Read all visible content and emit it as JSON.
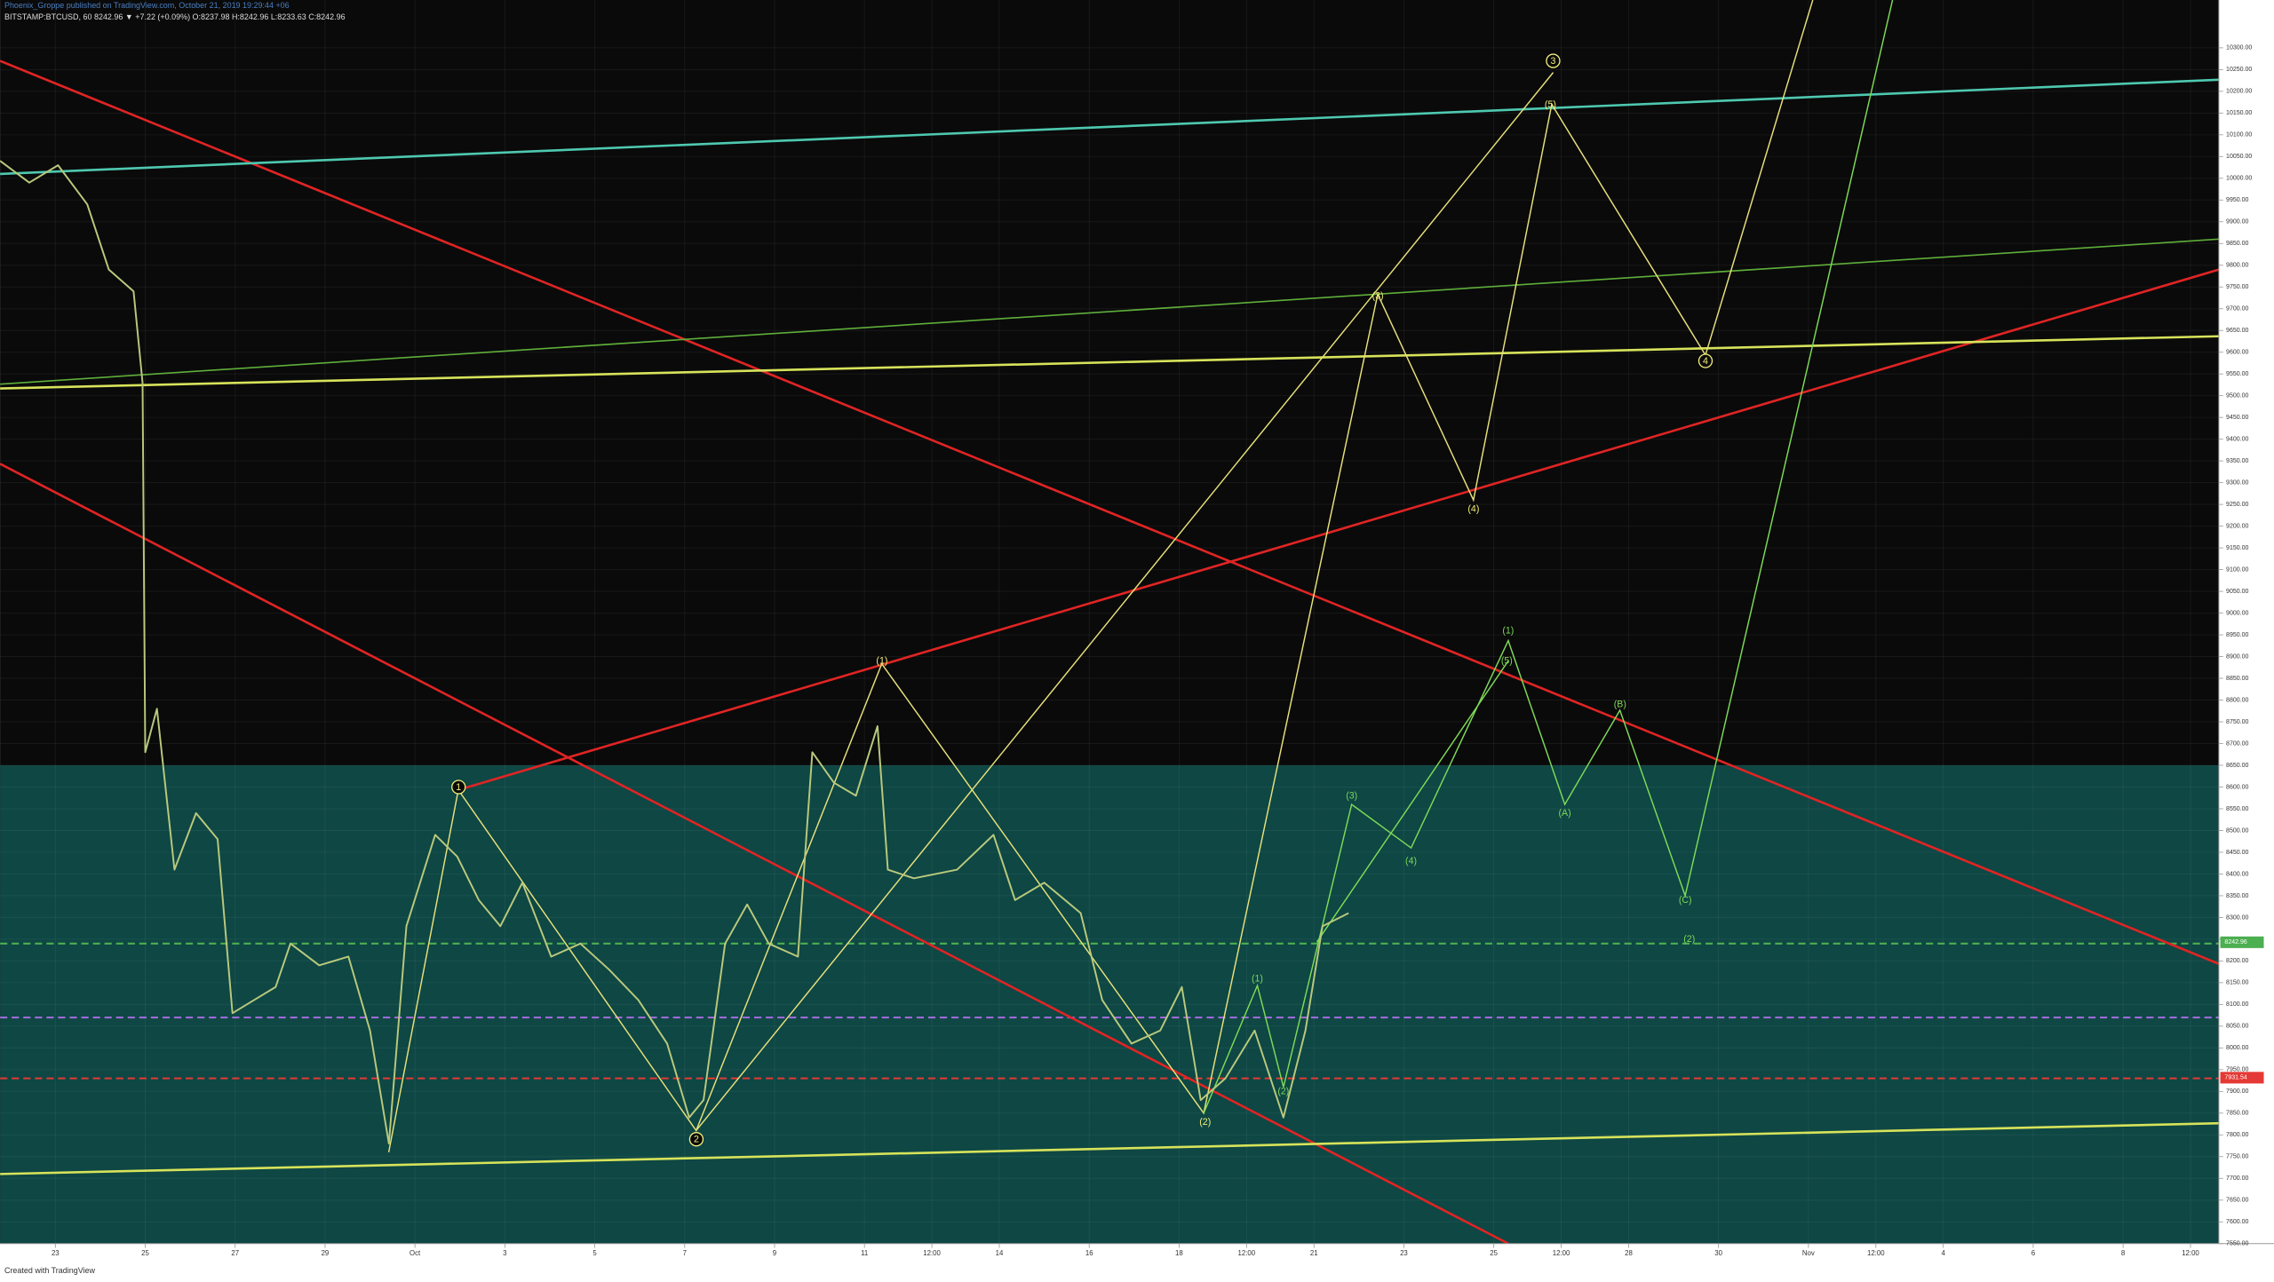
{
  "chart_data": {
    "type": "line",
    "header": "Phoenix_Groppe published on TradingView.com, October 21, 2019 19:29:44 +06",
    "subtitle": "BITSTAMP:BTCUSD, 60  8242.96  ▼ +7.22 (+0.09%)  O:8237.98 H:8242.96 L:8233.63 C:8242.96",
    "footer": "Created with TradingView",
    "x": [
      -1.23,
      -0.58,
      0.06,
      0.71,
      1.19,
      1.74,
      1.94,
      2.0,
      2.26,
      2.65,
      3.13,
      3.61,
      3.94,
      4.42,
      4.9,
      5.23,
      5.87,
      6.52,
      7.0,
      7.42,
      7.81,
      8.45,
      8.94,
      9.42,
      9.9,
      10.39,
      11.03,
      11.68,
      12.32,
      12.97,
      13.61,
      14.1,
      14.42,
      14.9,
      15.39,
      15.87,
      16.52,
      16.84,
      17.32,
      17.81,
      18.29,
      18.52,
      19.1,
      20.06,
      20.87,
      21.35,
      22.0,
      22.81,
      23.29,
      23.94,
      24.58,
      25.06,
      25.48,
      26.03,
      26.68,
      27.32,
      27.81,
      28.19,
      28.77
    ],
    "series": [
      {
        "name": "BTCUSD",
        "color": "#b9c97c",
        "values": [
          10040,
          9990,
          10030,
          9940,
          9790,
          9740,
          9530,
          8680,
          8780,
          8410,
          8540,
          8480,
          8080,
          8110,
          8140,
          8240,
          8190,
          8210,
          8040,
          7780,
          8280,
          8490,
          8440,
          8340,
          8280,
          8380,
          8210,
          8240,
          8180,
          8110,
          8010,
          7840,
          7880,
          8240,
          8330,
          8240,
          8210,
          8680,
          8610,
          8580,
          8740,
          8410,
          8390,
          8410,
          8490,
          8340,
          8380,
          8310,
          8110,
          8010,
          8040,
          8140,
          7880,
          7930,
          8040,
          7840,
          8040,
          8280,
          8310
        ]
      }
    ],
    "xlim": [
      -1.23,
      48.13
    ],
    "ylim": [
      7550,
      10410
    ],
    "xticks": [
      {
        "value": 0,
        "label": "23"
      },
      {
        "value": 2,
        "label": "25"
      },
      {
        "value": 4,
        "label": "27"
      },
      {
        "value": 6,
        "label": "29"
      },
      {
        "value": 8,
        "label": "Oct"
      },
      {
        "value": 10,
        "label": "3"
      },
      {
        "value": 12,
        "label": "5"
      },
      {
        "value": 14,
        "label": "7"
      },
      {
        "value": 16,
        "label": "9"
      },
      {
        "value": 18,
        "label": "11"
      },
      {
        "value": 19.5,
        "label": "12:00"
      },
      {
        "value": 21,
        "label": "14"
      },
      {
        "value": 23,
        "label": "16"
      },
      {
        "value": 25,
        "label": "18"
      },
      {
        "value": 26.5,
        "label": "12:00"
      },
      {
        "value": 28,
        "label": "21"
      },
      {
        "value": 30,
        "label": "23"
      },
      {
        "value": 32,
        "label": "25"
      },
      {
        "value": 33.5,
        "label": "12:00"
      },
      {
        "value": 35,
        "label": "28"
      },
      {
        "value": 37,
        "label": "30"
      },
      {
        "value": 39,
        "label": "Nov"
      },
      {
        "value": 40.5,
        "label": "12:00"
      },
      {
        "value": 42,
        "label": "4"
      },
      {
        "value": 44,
        "label": "6"
      },
      {
        "value": 46,
        "label": "8"
      },
      {
        "value": 47.5,
        "label": "12:00"
      }
    ],
    "yticks": [
      {
        "value": 7550,
        "label": "7550.00"
      },
      {
        "value": 7600,
        "label": "7600.00"
      },
      {
        "value": 7650,
        "label": "7650.00"
      },
      {
        "value": 7700,
        "label": "7700.00"
      },
      {
        "value": 7750,
        "label": "7750.00"
      },
      {
        "value": 7800,
        "label": "7800.00"
      },
      {
        "value": 7850,
        "label": "7850.00"
      },
      {
        "value": 7900,
        "label": "7900.00"
      },
      {
        "value": 7950,
        "label": "7950.00"
      },
      {
        "value": 8000,
        "label": "8000.00"
      },
      {
        "value": 8050,
        "label": "8050.00"
      },
      {
        "value": 8100,
        "label": "8100.00"
      },
      {
        "value": 8150,
        "label": "8150.00"
      },
      {
        "value": 8200,
        "label": "8200.00"
      },
      {
        "value": 8250,
        "label": "8250.00"
      },
      {
        "value": 8300,
        "label": "8300.00"
      },
      {
        "value": 8350,
        "label": "8350.00"
      },
      {
        "value": 8400,
        "label": "8400.00"
      },
      {
        "value": 8450,
        "label": "8450.00"
      },
      {
        "value": 8500,
        "label": "8500.00"
      },
      {
        "value": 8550,
        "label": "8550.00"
      },
      {
        "value": 8600,
        "label": "8600.00"
      },
      {
        "value": 8650,
        "label": "8650.00"
      },
      {
        "value": 8700,
        "label": "8700.00"
      },
      {
        "value": 8750,
        "label": "8750.00"
      },
      {
        "value": 8800,
        "label": "8800.00"
      },
      {
        "value": 8850,
        "label": "8850.00"
      },
      {
        "value": 8900,
        "label": "8900.00"
      },
      {
        "value": 8950,
        "label": "8950.00"
      },
      {
        "value": 9000,
        "label": "9000.00"
      },
      {
        "value": 9050,
        "label": "9050.00"
      },
      {
        "value": 9100,
        "label": "9100.00"
      },
      {
        "value": 9150,
        "label": "9150.00"
      },
      {
        "value": 9200,
        "label": "9200.00"
      },
      {
        "value": 9250,
        "label": "9250.00"
      },
      {
        "value": 9300,
        "label": "9300.00"
      },
      {
        "value": 9350,
        "label": "9350.00"
      },
      {
        "value": 9400,
        "label": "9400.00"
      },
      {
        "value": 9450,
        "label": "9450.00"
      },
      {
        "value": 9500,
        "label": "9500.00"
      },
      {
        "value": 9550,
        "label": "9550.00"
      },
      {
        "value": 9600,
        "label": "9600.00"
      },
      {
        "value": 9650,
        "label": "9650.00"
      },
      {
        "value": 9700,
        "label": "9700.00"
      },
      {
        "value": 9750,
        "label": "9750.00"
      },
      {
        "value": 9800,
        "label": "9800.00"
      },
      {
        "value": 9850,
        "label": "9850.00"
      },
      {
        "value": 9900,
        "label": "9900.00"
      },
      {
        "value": 9950,
        "label": "9950.00"
      },
      {
        "value": 10000,
        "label": "10000.00"
      },
      {
        "value": 10050,
        "label": "10050.00"
      },
      {
        "value": 10100,
        "label": "10100.00"
      },
      {
        "value": 10150,
        "label": "10150.00"
      },
      {
        "value": 10200,
        "label": "10200.00"
      },
      {
        "value": 10250,
        "label": "10250.00"
      },
      {
        "value": 10300,
        "label": "10300.00"
      }
    ],
    "grid": true,
    "zone": {
      "from": 8650,
      "color": "#0e4744"
    },
    "hlines": [
      {
        "value": 8240,
        "color": "#4caf50"
      },
      {
        "value": 8070,
        "color": "#9b6bd6"
      },
      {
        "value": 7930,
        "color": "#e53935"
      }
    ],
    "price_labels": [
      {
        "value": 8242.96,
        "label": "8242.96",
        "color": "#4caf50"
      },
      {
        "value": 7931.54,
        "label": "7931.54",
        "color": "#e53935"
      }
    ],
    "annotations": [
      {
        "text": "1",
        "x": 8.97,
        "y": 8600,
        "color": "#f5f07a",
        "circled": true
      },
      {
        "text": "2",
        "x": 14.26,
        "y": 7790,
        "color": "#f5f07a",
        "circled": true
      },
      {
        "text": "(1)",
        "x": 18.39,
        "y": 8890,
        "color": "#f5f07a",
        "circled": false
      },
      {
        "text": "3",
        "x": 33.32,
        "y": 10270,
        "color": "#f5f07a",
        "circled": true
      },
      {
        "text": "(5)",
        "x": 33.26,
        "y": 10170,
        "color": "#f5f07a",
        "circled": false
      },
      {
        "text": "(3)",
        "x": 29.42,
        "y": 9730,
        "color": "#f5f07a",
        "circled": false
      },
      {
        "text": "(4)",
        "x": 31.55,
        "y": 9240,
        "color": "#f5f07a",
        "circled": false
      },
      {
        "text": "4",
        "x": 36.71,
        "y": 9580,
        "color": "#f5f07a",
        "circled": true
      },
      {
        "text": "(1)",
        "x": 32.32,
        "y": 8960,
        "color": "#7ed957",
        "circled": false
      },
      {
        "text": "(5)",
        "x": 32.29,
        "y": 8890,
        "color": "#7ed957",
        "circled": false
      },
      {
        "text": "(B)",
        "x": 34.81,
        "y": 8790,
        "color": "#7ed957",
        "circled": false
      },
      {
        "text": "(A)",
        "x": 33.58,
        "y": 8540,
        "color": "#7ed957",
        "circled": false
      },
      {
        "text": "(3)",
        "x": 28.84,
        "y": 8580,
        "color": "#7ed957",
        "circled": false
      },
      {
        "text": "(4)",
        "x": 30.16,
        "y": 8430,
        "color": "#7ed957",
        "circled": false
      },
      {
        "text": "(C)",
        "x": 36.26,
        "y": 8340,
        "color": "#7ed957",
        "circled": false
      },
      {
        "text": "(2)",
        "x": 36.35,
        "y": 8250,
        "color": "#7ed957",
        "circled": false
      },
      {
        "text": "(1)",
        "x": 26.74,
        "y": 8160,
        "color": "#7ed957",
        "circled": false
      },
      {
        "text": "(2)",
        "x": 27.32,
        "y": 7900,
        "color": "#7ed957",
        "circled": false
      },
      {
        "text": "(2)",
        "x": 25.58,
        "y": 7830,
        "color": "#f5f07a",
        "circled": false
      }
    ]
  }
}
